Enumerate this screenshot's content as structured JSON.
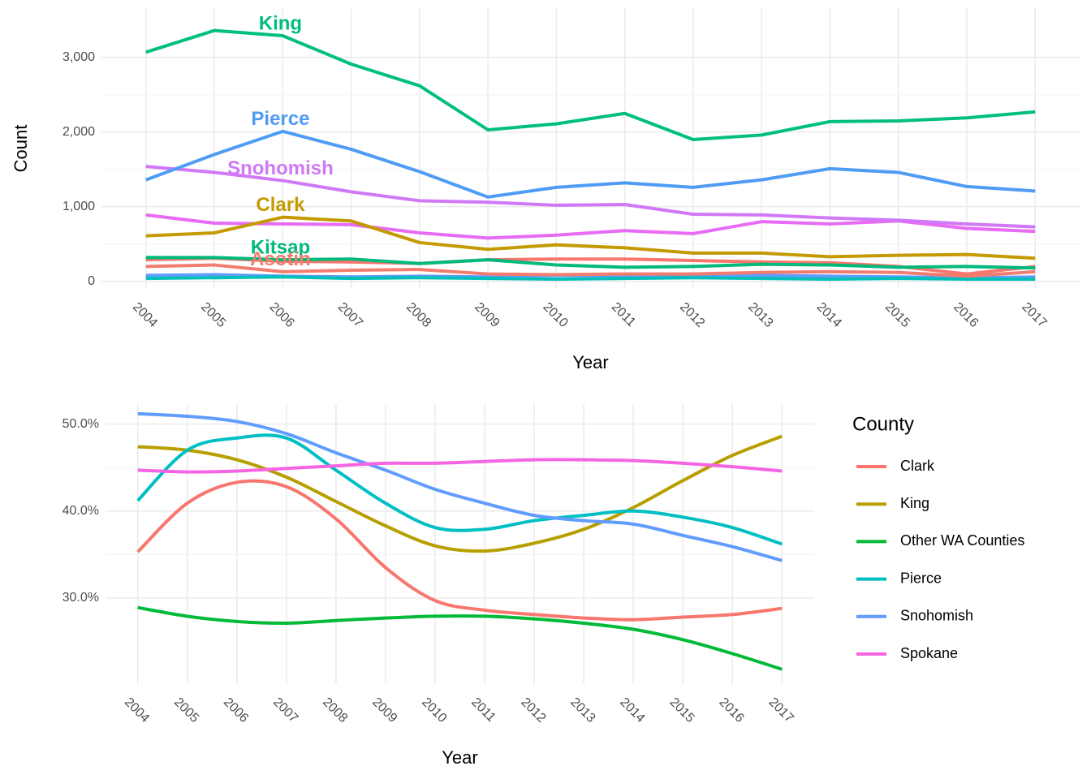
{
  "chart_data": [
    {
      "type": "line",
      "direct_labels": true,
      "grid": true,
      "x_label": "Year",
      "y_label": "Count",
      "x": [
        2004,
        2005,
        2006,
        2007,
        2008,
        2009,
        2010,
        2011,
        2012,
        2013,
        2014,
        2015,
        2016,
        2017
      ],
      "xlim": [
        2003.35,
        2017.65
      ],
      "xticks": [
        2004,
        2005,
        2006,
        2007,
        2008,
        2009,
        2010,
        2011,
        2012,
        2013,
        2014,
        2015,
        2016,
        2017
      ],
      "ylim": [
        -100,
        3660
      ],
      "yticks": [
        0,
        {
          "value": 1000,
          "label": "1,000"
        },
        {
          "value": 2000,
          "label": "2,000"
        },
        {
          "value": 3000,
          "label": "3,000"
        }
      ],
      "series": [
        {
          "color": "#f8766d",
          "values": [
            290,
            310,
            270,
            260,
            240,
            290,
            300,
            300,
            280,
            260,
            250,
            200,
            100,
            200
          ]
        },
        {
          "color": "#e76bf3",
          "values": [
            890,
            780,
            770,
            760,
            650,
            580,
            620,
            680,
            640,
            800,
            770,
            810,
            710,
            670
          ]
        },
        {
          "color": "#619cff",
          "values": [
            80,
            90,
            70,
            60,
            70,
            60,
            80,
            70,
            90,
            80,
            70,
            60,
            50,
            60
          ]
        },
        {
          "color": "#00c0b8",
          "values": [
            40,
            50,
            60,
            40,
            50,
            40,
            30,
            40,
            50,
            40,
            30,
            40,
            30,
            30
          ]
        },
        {
          "name": "Kitsap",
          "color": "#00b97b",
          "values": [
            320,
            320,
            290,
            300,
            240,
            290,
            220,
            190,
            200,
            230,
            220,
            190,
            200,
            180
          ]
        },
        {
          "name": "Asotin",
          "color": "#f27d6f",
          "values": [
            200,
            220,
            130,
            150,
            160,
            100,
            90,
            100,
            100,
            120,
            130,
            120,
            70,
            130
          ]
        },
        {
          "name": "Clark",
          "color": "#c49a00",
          "values": [
            610,
            650,
            860,
            810,
            520,
            430,
            490,
            450,
            380,
            380,
            330,
            350,
            360,
            310
          ]
        },
        {
          "name": "Snohomish",
          "color": "#d078f5",
          "values": [
            1540,
            1460,
            1350,
            1200,
            1080,
            1060,
            1020,
            1030,
            900,
            890,
            850,
            820,
            770,
            730
          ]
        },
        {
          "name": "Pierce",
          "color": "#4f9cf5",
          "values": [
            1360,
            1700,
            2010,
            1770,
            1470,
            1130,
            1260,
            1320,
            1260,
            1360,
            1510,
            1460,
            1270,
            1210
          ]
        },
        {
          "name": "King",
          "color": "#00bf7d",
          "values": [
            3070,
            3360,
            3290,
            2910,
            2620,
            2030,
            2110,
            2250,
            1900,
            1960,
            2140,
            2150,
            2190,
            2270
          ]
        }
      ]
    },
    {
      "type": "line",
      "smooth": true,
      "grid": true,
      "legend_title": "County",
      "x_label": "Year",
      "x": [
        2004,
        2005,
        2006,
        2007,
        2008,
        2009,
        2010,
        2011,
        2012,
        2013,
        2014,
        2015,
        2016,
        2017
      ],
      "xlim": [
        2003.35,
        2017.65
      ],
      "xticks": [
        2004,
        2005,
        2006,
        2007,
        2008,
        2009,
        2010,
        2011,
        2012,
        2013,
        2014,
        2015,
        2016,
        2017
      ],
      "ylim": [
        20.1,
        52.3
      ],
      "yticks": [
        {
          "value": 30,
          "label": "30.0%"
        },
        {
          "value": 40,
          "label": "40.0%"
        },
        {
          "value": 50,
          "label": "50.0%"
        }
      ],
      "series": [
        {
          "name": "Clark",
          "color": "#f8766d",
          "values": [
            35.3,
            40.9,
            43.3,
            42.8,
            39.1,
            33.5,
            29.7,
            28.6,
            28.1,
            27.7,
            27.5,
            27.8,
            28.1,
            28.8
          ]
        },
        {
          "name": "King",
          "color": "#b79f00",
          "values": [
            47.4,
            47.0,
            45.9,
            43.9,
            41.1,
            38.3,
            36.0,
            35.4,
            36.3,
            37.9,
            40.4,
            43.5,
            46.4,
            48.6
          ]
        },
        {
          "name": "Other WA Counties",
          "color": "#00ba38",
          "values": [
            28.9,
            27.9,
            27.3,
            27.1,
            27.4,
            27.7,
            27.9,
            27.9,
            27.6,
            27.1,
            26.4,
            25.2,
            23.6,
            21.8
          ]
        },
        {
          "name": "Pierce",
          "color": "#00bfc4",
          "values": [
            41.2,
            47.0,
            48.4,
            48.4,
            44.7,
            40.9,
            38.1,
            37.9,
            38.9,
            39.5,
            40.0,
            39.3,
            38.1,
            36.2
          ]
        },
        {
          "name": "Snohomish",
          "color": "#619cff",
          "values": [
            51.2,
            50.9,
            50.3,
            48.9,
            46.7,
            44.7,
            42.5,
            40.9,
            39.5,
            38.9,
            38.5,
            37.2,
            35.9,
            34.3
          ]
        },
        {
          "name": "Spokane",
          "color": "#f564e3",
          "values": [
            44.7,
            44.5,
            44.6,
            44.9,
            45.2,
            45.5,
            45.5,
            45.7,
            45.9,
            45.9,
            45.8,
            45.5,
            45.1,
            44.6
          ]
        }
      ]
    }
  ]
}
